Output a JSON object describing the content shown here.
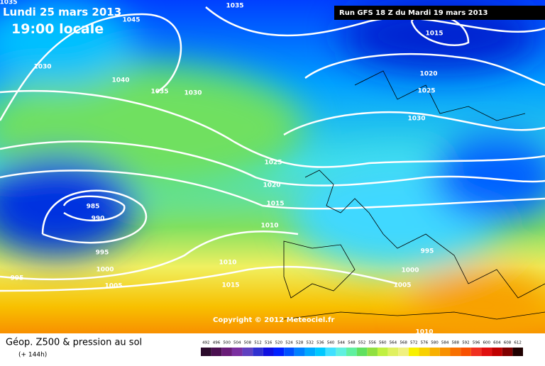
{
  "header": {
    "date": "Lundi 25 mars 2013",
    "time": "19:00 locale",
    "run": "Run GFS 18 Z du Mardi 19 mars 2013"
  },
  "isobar_labels": [
    "1035",
    "1035",
    "1045",
    "1030",
    "1040",
    "1035",
    "1030",
    "1015",
    "1020",
    "1025",
    "1030",
    "1025",
    "1020",
    "1015",
    "1010",
    "985",
    "990",
    "995",
    "1000",
    "1005",
    "995",
    "1010",
    "1015",
    "995",
    "1000",
    "1005",
    "1010"
  ],
  "copyright": "Copyright © 2012 Meteociel.fr",
  "legend": {
    "title": "Géop. Z500 & pression au sol",
    "subtitle": "(+ 144h)",
    "scale": [
      492,
      496,
      500,
      504,
      508,
      512,
      516,
      520,
      524,
      528,
      532,
      536,
      540,
      544,
      548,
      552,
      556,
      560,
      564,
      568,
      572,
      576,
      580,
      584,
      588,
      592,
      596,
      600,
      604,
      608,
      612
    ],
    "colors": [
      "#2b0b2b",
      "#4b1050",
      "#6a1c78",
      "#7b2fa0",
      "#6040c0",
      "#3030d0",
      "#1010e0",
      "#0020ff",
      "#0050ff",
      "#0080ff",
      "#00a8ff",
      "#00c8ff",
      "#40e0ff",
      "#60f0e0",
      "#60f0a0",
      "#60e060",
      "#90e040",
      "#c0f040",
      "#e0f060",
      "#f0f080",
      "#f8f000",
      "#f8d000",
      "#f8b000",
      "#f89000",
      "#f87000",
      "#f85000",
      "#f03020",
      "#e01010",
      "#c00000",
      "#800000",
      "#200000"
    ]
  }
}
